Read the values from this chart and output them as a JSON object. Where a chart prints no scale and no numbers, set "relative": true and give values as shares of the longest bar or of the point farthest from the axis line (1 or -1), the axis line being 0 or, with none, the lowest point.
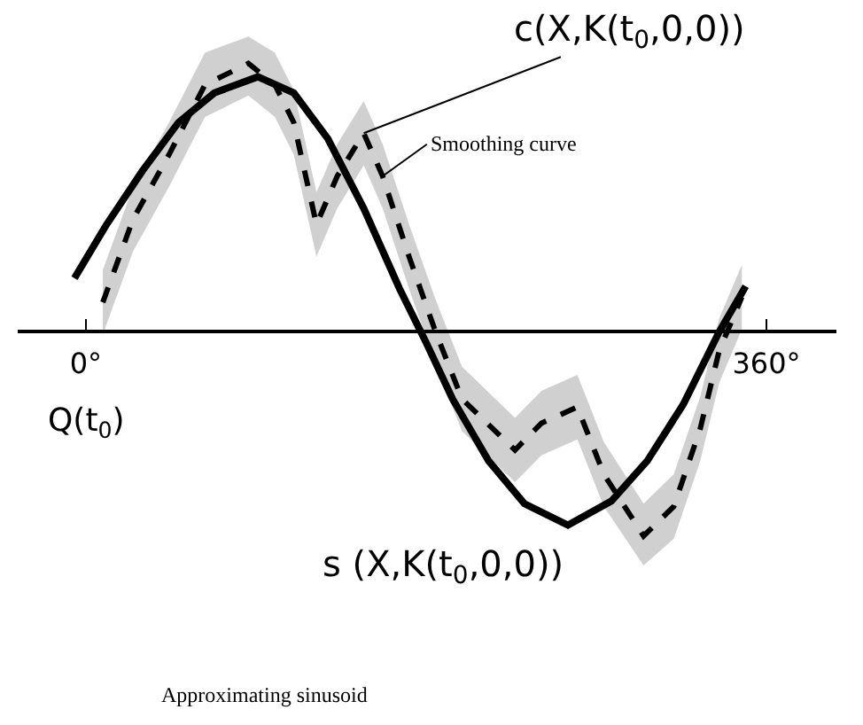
{
  "chart_data": {
    "type": "line",
    "relative": true,
    "xlim": [
      -36,
      397
    ],
    "xticks": [
      {
        "value": 0,
        "label": "0°"
      },
      {
        "value": 360,
        "label": "360°"
      }
    ],
    "legend": false,
    "marker": "none",
    "series": [
      {
        "name": "s (X,K(t$_{0}$,0,0))",
        "color": "#000000",
        "line_style": "solid",
        "x": [
          -6,
          11,
          30,
          49,
          68,
          91,
          110,
          128,
          147,
          166,
          180,
          194,
          213,
          232,
          255,
          278,
          297,
          316,
          335,
          349
        ],
        "values": [
          0.2,
          0.4,
          0.6,
          0.78,
          0.89,
          0.95,
          0.89,
          0.72,
          0.46,
          0.16,
          -0.04,
          -0.25,
          -0.48,
          -0.64,
          -0.72,
          -0.63,
          -0.48,
          -0.27,
          0,
          0.17
        ]
      },
      {
        "name": "c(X,K(t$_{0}$,0,0))",
        "color": "#000000",
        "line_style": "dashed",
        "x": [
          9,
          25,
          44,
          63,
          86,
          100,
          110,
          122,
          133,
          147,
          157,
          171,
          185,
          199,
          227,
          241,
          260,
          274,
          295,
          311,
          325,
          335,
          347
        ],
        "values": [
          0.11,
          0.42,
          0.66,
          0.92,
          1,
          0.92,
          0.78,
          0.4,
          0.58,
          0.74,
          0.58,
          0.28,
          0,
          -0.25,
          -0.44,
          -0.34,
          -0.28,
          -0.53,
          -0.76,
          -0.65,
          -0.36,
          -0.07,
          0.13
        ],
        "lower": [
          -0.01,
          0.3,
          0.54,
          0.8,
          0.88,
          0.8,
          0.66,
          0.28,
          0.46,
          0.62,
          0.46,
          0.16,
          -0.12,
          -0.37,
          -0.56,
          -0.46,
          -0.4,
          -0.65,
          -0.87,
          -0.77,
          -0.48,
          -0.19,
          0.01
        ],
        "upper": [
          0.23,
          0.54,
          0.78,
          1.04,
          1.1,
          1.04,
          0.9,
          0.52,
          0.7,
          0.86,
          0.7,
          0.4,
          0.12,
          -0.13,
          -0.32,
          -0.22,
          -0.16,
          -0.41,
          -0.64,
          -0.53,
          -0.24,
          0.05,
          0.25
        ]
      }
    ],
    "annotations": [
      {
        "text": "Smoothing curve",
        "x": 157,
        "y": 0.58
      },
      "Approximating sinusoid",
      "Q(t$_{0}$)"
    ]
  }
}
